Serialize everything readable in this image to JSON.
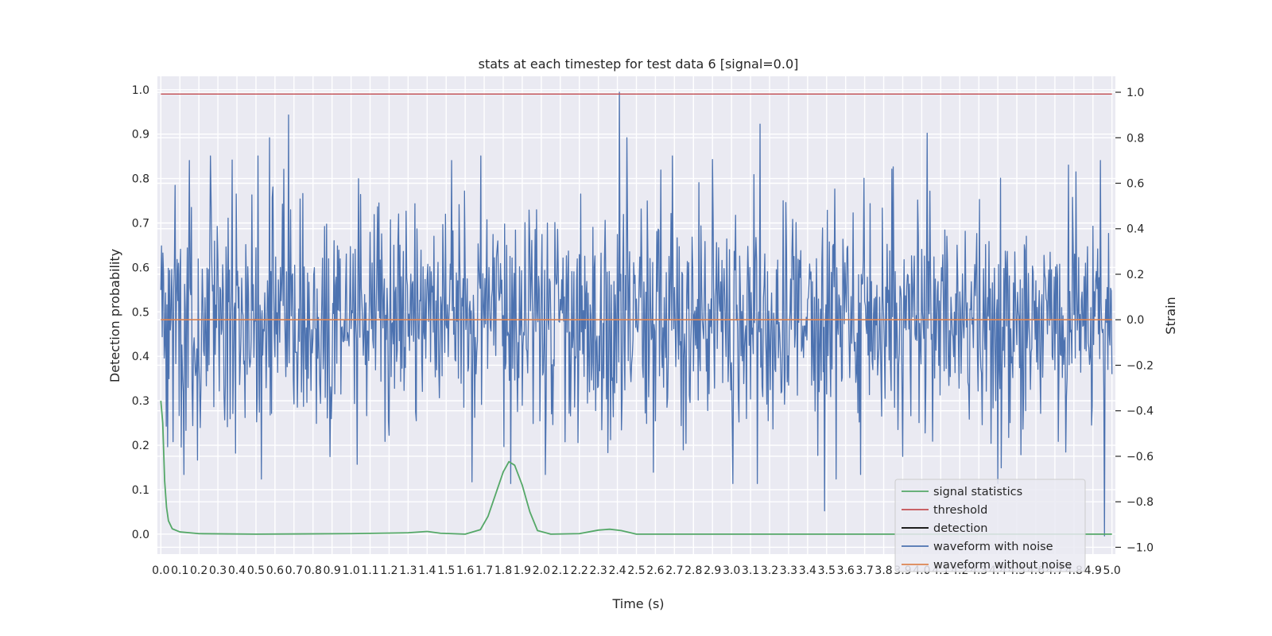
{
  "chart_data": {
    "type": "line",
    "title": "stats at each timestep for test data 6 [signal=0.0]",
    "xlabel": "Time (s)",
    "ylabel_left": "Detection probability",
    "ylabel_right": "Strain",
    "xlim": [
      -0.018,
      5.018
    ],
    "ylim_left": [
      -0.045,
      1.03
    ],
    "ylim_right": [
      -1.03,
      1.07
    ],
    "x_ticks": [
      "0.0",
      "0.1",
      "0.2",
      "0.3",
      "0.4",
      "0.5",
      "0.6",
      "0.7",
      "0.8",
      "0.9",
      "1.0",
      "1.1",
      "1.2",
      "1.3",
      "1.4",
      "1.5",
      "1.6",
      "1.7",
      "1.8",
      "1.9",
      "2.0",
      "2.1",
      "2.2",
      "2.3",
      "2.4",
      "2.5",
      "2.6",
      "2.7",
      "2.8",
      "2.9",
      "3.0",
      "3.1",
      "3.2",
      "3.3",
      "3.4",
      "3.5",
      "3.6",
      "3.7",
      "3.8",
      "3.9",
      "4.0",
      "4.1",
      "4.2",
      "4.3",
      "4.4",
      "4.5",
      "4.6",
      "4.7",
      "4.8",
      "4.9",
      "5.0"
    ],
    "y_ticks_left": [
      "0.0",
      "0.1",
      "0.2",
      "0.3",
      "0.4",
      "0.5",
      "0.6",
      "0.7",
      "0.8",
      "0.9",
      "1.0"
    ],
    "y_ticks_right": [
      "−1.0",
      "−0.8",
      "−0.6",
      "−0.4",
      "−0.2",
      "0.0",
      "0.2",
      "0.4",
      "0.6",
      "0.8",
      "1.0"
    ],
    "grid": true,
    "legend_position": "lower-right",
    "series": [
      {
        "name": "signal statistics",
        "axis": "left",
        "color": "#55a868",
        "points": [
          [
            0.0,
            0.3
          ],
          [
            0.01,
            0.25
          ],
          [
            0.02,
            0.12
          ],
          [
            0.03,
            0.06
          ],
          [
            0.04,
            0.03
          ],
          [
            0.06,
            0.012
          ],
          [
            0.1,
            0.005
          ],
          [
            0.2,
            0.001
          ],
          [
            0.5,
            0.0
          ],
          [
            1.0,
            0.001
          ],
          [
            1.3,
            0.003
          ],
          [
            1.4,
            0.006
          ],
          [
            1.47,
            0.002
          ],
          [
            1.6,
            0.0
          ],
          [
            1.68,
            0.01
          ],
          [
            1.72,
            0.04
          ],
          [
            1.76,
            0.09
          ],
          [
            1.8,
            0.14
          ],
          [
            1.83,
            0.163
          ],
          [
            1.86,
            0.155
          ],
          [
            1.9,
            0.11
          ],
          [
            1.94,
            0.05
          ],
          [
            1.98,
            0.008
          ],
          [
            2.05,
            0.0
          ],
          [
            2.2,
            0.001
          ],
          [
            2.3,
            0.009
          ],
          [
            2.36,
            0.011
          ],
          [
            2.42,
            0.008
          ],
          [
            2.5,
            0.0
          ],
          [
            5.0,
            0.0
          ]
        ]
      },
      {
        "name": "threshold",
        "axis": "left",
        "color": "#c44e52",
        "points": [
          [
            0.0,
            0.99
          ],
          [
            5.0,
            0.99
          ]
        ]
      },
      {
        "name": "detection",
        "axis": "left",
        "color": "#000000",
        "points": []
      },
      {
        "name": "waveform with noise",
        "axis": "right",
        "color": "#4c72b0",
        "sample_count": 1400,
        "amplitude_std": 0.25,
        "peaks": [
          [
            2.41,
            1.0
          ],
          [
            0.67,
            0.9
          ],
          [
            3.15,
            0.86
          ],
          [
            4.03,
            0.82
          ],
          [
            2.45,
            0.8
          ],
          [
            0.57,
            0.8
          ],
          [
            0.15,
            0.7
          ],
          [
            0.26,
            0.72
          ],
          [
            0.51,
            0.72
          ],
          [
            1.53,
            0.7
          ],
          [
            1.04,
            0.62
          ],
          [
            4.77,
            0.68
          ],
          [
            4.94,
            0.7
          ],
          [
            4.81,
            0.65
          ],
          [
            3.96,
            0.28
          ],
          [
            3.49,
            -0.84
          ],
          [
            4.96,
            -0.95
          ],
          [
            0.53,
            -0.7
          ],
          [
            2.02,
            -0.68
          ],
          [
            0.12,
            -0.68
          ],
          [
            1.84,
            -0.72
          ],
          [
            3.55,
            -0.7
          ],
          [
            3.68,
            -0.68
          ],
          [
            2.59,
            -0.67
          ]
        ]
      },
      {
        "name": "waveform without noise",
        "axis": "right",
        "color": "#dd8452",
        "points": [
          [
            0.0,
            0.0
          ],
          [
            5.0,
            0.0
          ]
        ]
      }
    ]
  }
}
